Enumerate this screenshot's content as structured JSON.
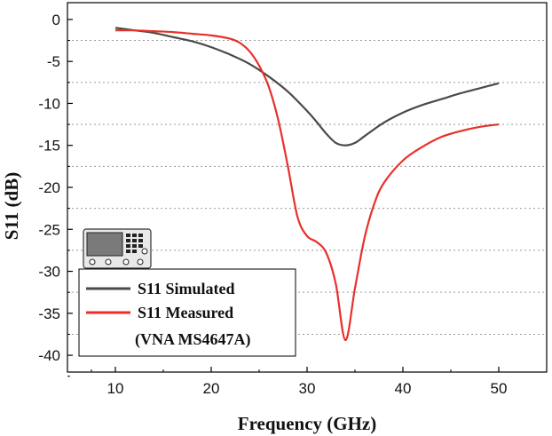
{
  "chart_data": {
    "type": "line",
    "xlabel": "Frequency (GHz)",
    "ylabel": "S11 (dB)",
    "xlim": [
      5,
      55
    ],
    "ylim": [
      -42,
      2
    ],
    "xticks": [
      10,
      20,
      30,
      40,
      50
    ],
    "yticks": [
      0,
      -5,
      -10,
      -15,
      -20,
      -25,
      -30,
      -35,
      -40
    ],
    "grid": "horizontal-dashed-minor",
    "legend_position": "bottom-left",
    "series": [
      {
        "name": "S11 Simulated",
        "color": "#4a4a4a",
        "x": [
          10,
          12,
          14,
          16,
          18,
          20,
          22,
          24,
          26,
          28,
          30,
          31,
          32,
          33,
          34,
          35,
          36,
          38,
          40,
          42,
          44,
          46,
          48,
          50
        ],
        "y": [
          -1.0,
          -1.3,
          -1.6,
          -2.1,
          -2.6,
          -3.3,
          -4.2,
          -5.3,
          -6.8,
          -8.6,
          -10.9,
          -12.2,
          -13.6,
          -14.7,
          -15.0,
          -14.7,
          -13.9,
          -12.3,
          -11.1,
          -10.2,
          -9.5,
          -8.8,
          -8.2,
          -7.6
        ]
      },
      {
        "name": "S11 Measured",
        "color": "#e8302a",
        "x": [
          10,
          12,
          14,
          16,
          18,
          20,
          22,
          23,
          24,
          25,
          26,
          27,
          28,
          29,
          30,
          31,
          32,
          33,
          34,
          35,
          36,
          37,
          38,
          40,
          42,
          44,
          46,
          48,
          50
        ],
        "y": [
          -1.3,
          -1.3,
          -1.4,
          -1.5,
          -1.7,
          -1.9,
          -2.3,
          -2.8,
          -3.8,
          -5.5,
          -8.0,
          -12.0,
          -17.5,
          -23.5,
          -25.8,
          -26.5,
          -27.8,
          -31.5,
          -38.2,
          -32.0,
          -26.0,
          -22.0,
          -19.5,
          -16.8,
          -15.2,
          -14.0,
          -13.3,
          -12.8,
          -12.5
        ]
      }
    ],
    "legend_note": "(VNA MS4647A)",
    "ytick_labels": [
      "0",
      "-5",
      "-10",
      "-15",
      "-20",
      "-25",
      "-30",
      "-35",
      "-40"
    ],
    "xtick_labels": [
      "10",
      "20",
      "30",
      "40",
      "50"
    ]
  }
}
